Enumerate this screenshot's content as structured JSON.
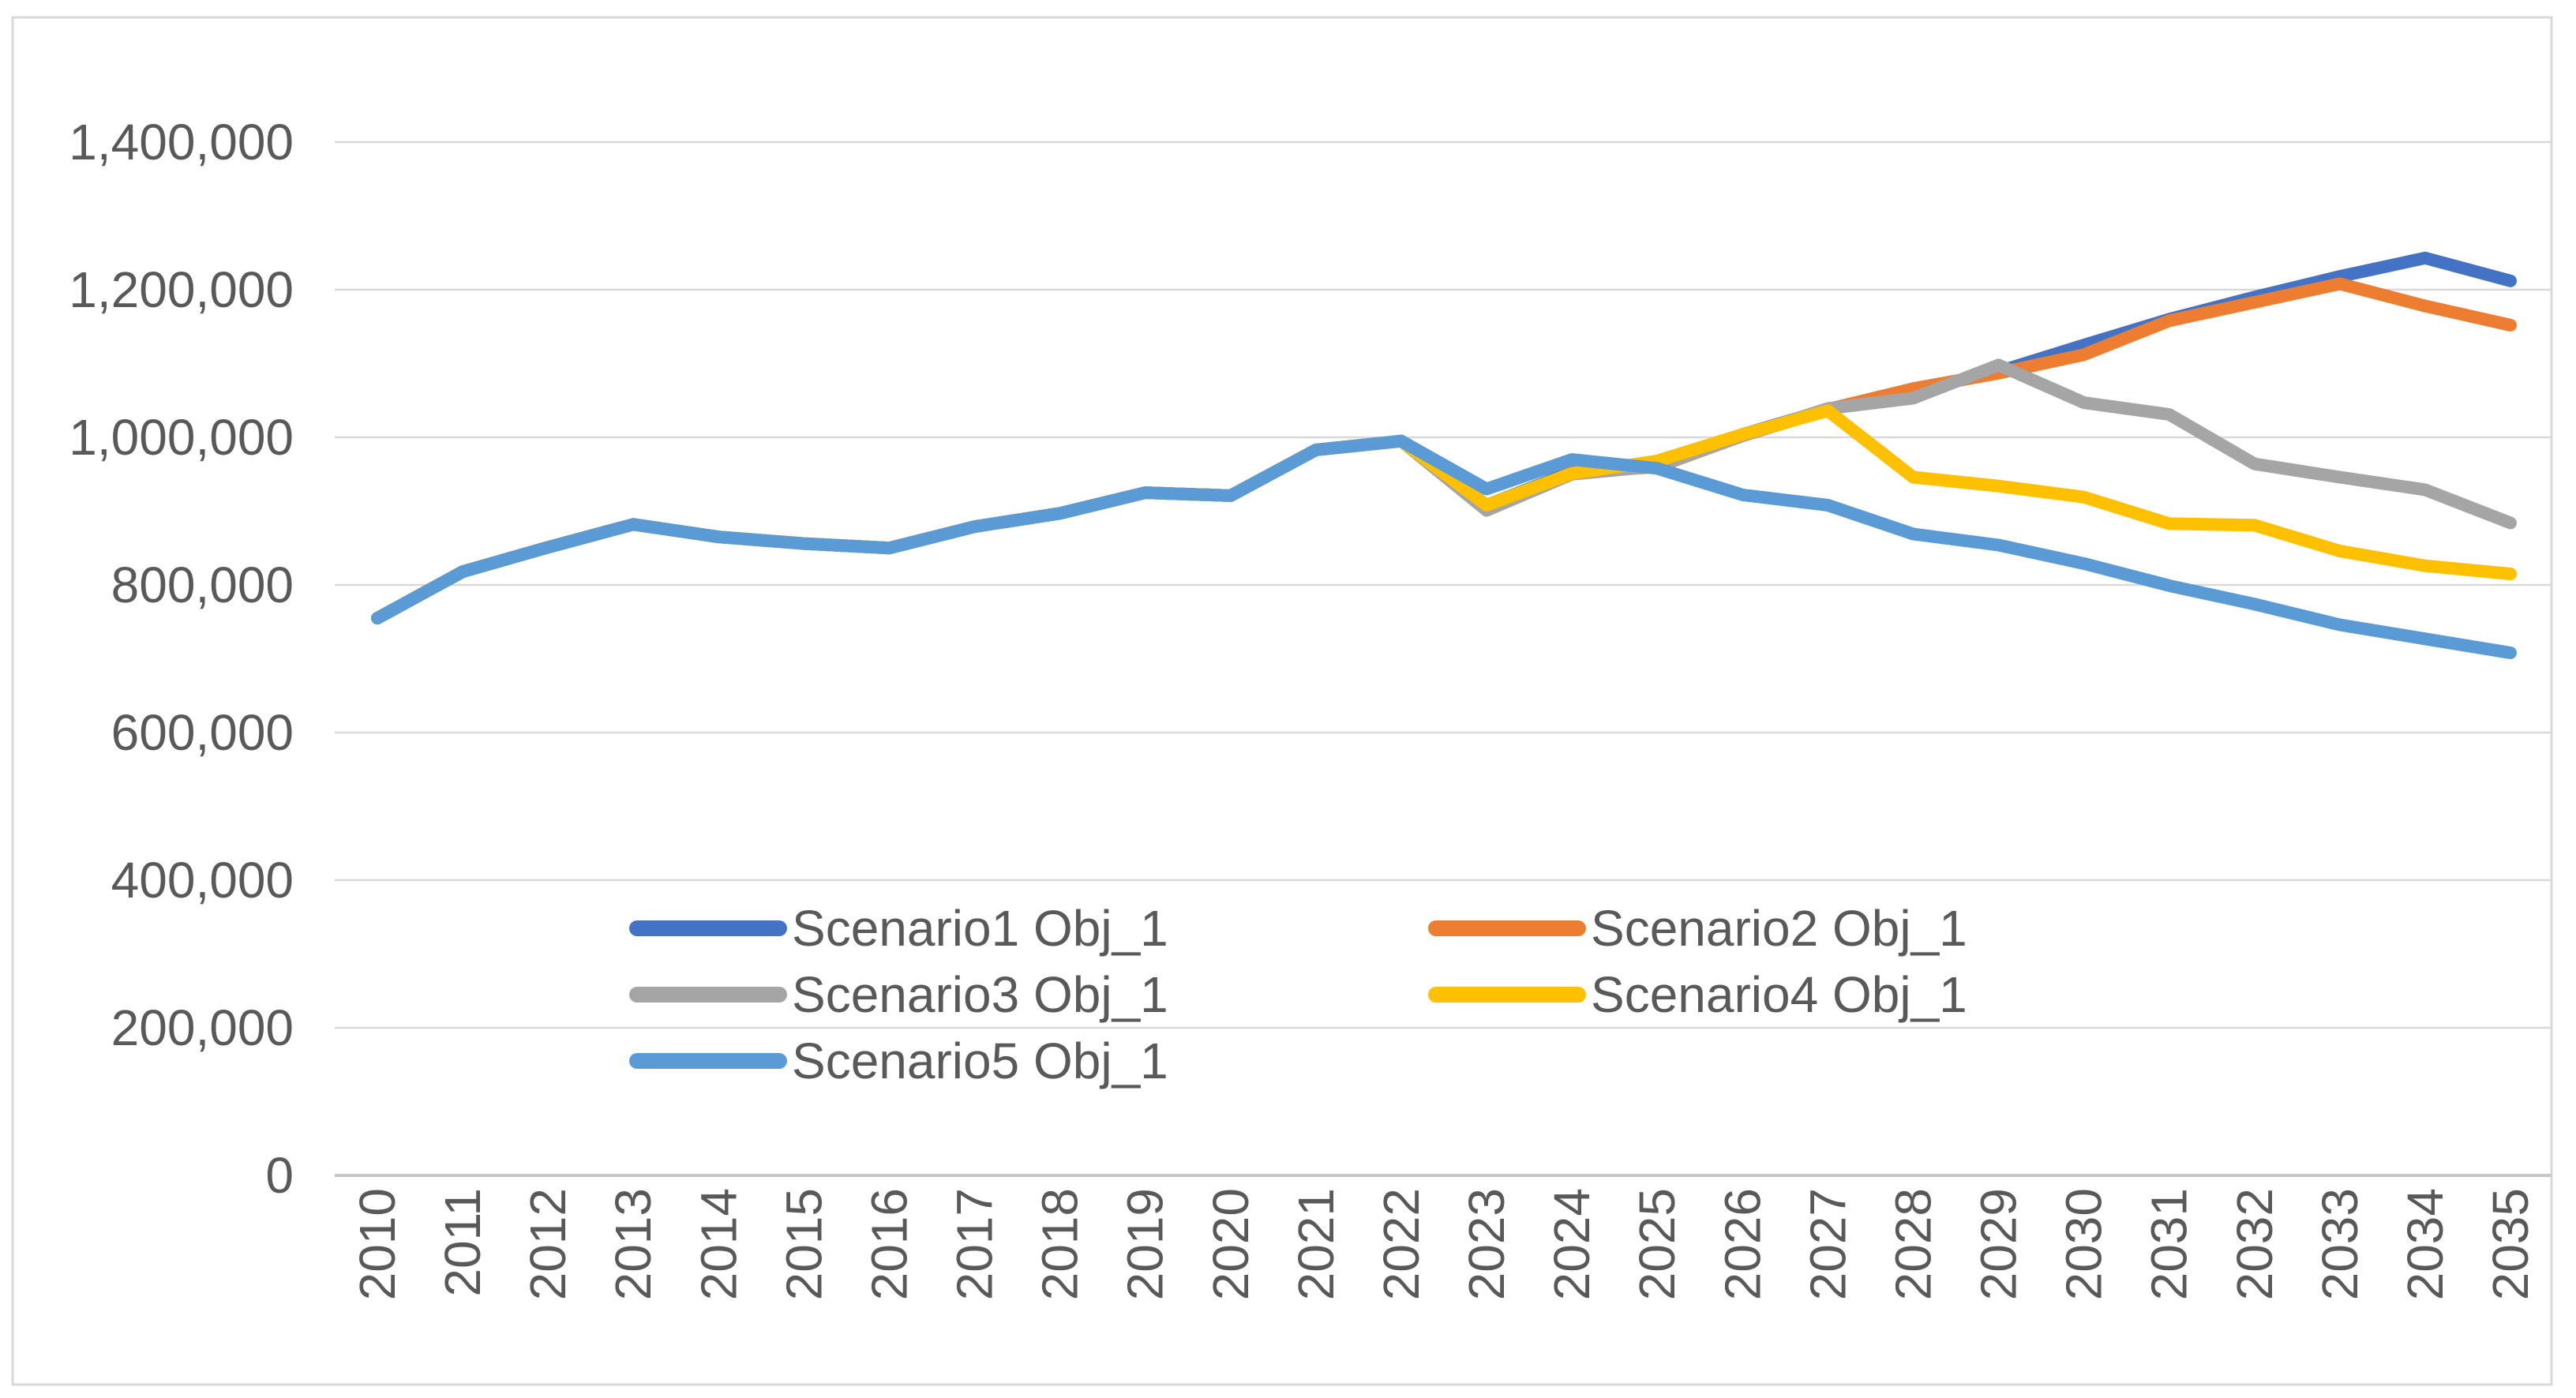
{
  "frame": {
    "background": "#FFFFFF",
    "border_color": "#D9D9D9",
    "grid_color": "#D9D9D9",
    "zero_axis_color": "#C6C6C6",
    "text_color": "#595959"
  },
  "chart_data": {
    "type": "line",
    "title": "",
    "xlabel": "",
    "ylabel": "",
    "grid": true,
    "legend_position": "inside-bottom-left, two columns",
    "x": [
      2010,
      2011,
      2012,
      2013,
      2014,
      2015,
      2016,
      2017,
      2018,
      2019,
      2020,
      2021,
      2022,
      2023,
      2024,
      2025,
      2026,
      2027,
      2028,
      2029,
      2030,
      2031,
      2032,
      2033,
      2034,
      2035
    ],
    "x_tick_labels": [
      "2010",
      "2011",
      "2012",
      "2013",
      "2014",
      "2015",
      "2016",
      "2017",
      "2018",
      "2019",
      "2020",
      "2021",
      "2022",
      "2023",
      "2024",
      "2025",
      "2026",
      "2027",
      "2028",
      "2029",
      "2030",
      "2031",
      "2032",
      "2033",
      "2034",
      "2035"
    ],
    "y_axis": {
      "min": 0,
      "max": 1400000,
      "step": 200000,
      "tick_labels": [
        "0",
        "200,000",
        "400,000",
        "600,000",
        "800,000",
        "1,000,000",
        "1,200,000",
        "1,400,000"
      ]
    },
    "series": [
      {
        "name": "Scenario1 Obj_1",
        "color": "#4472C4",
        "values": [
          755000,
          818000,
          851000,
          882000,
          865000,
          856000,
          850000,
          879000,
          897000,
          925000,
          921000,
          983000,
          995000,
          908000,
          953000,
          962000,
          1004000,
          1038000,
          1063000,
          1089000,
          1125000,
          1160000,
          1190000,
          1218000,
          1243000,
          1212000
        ]
      },
      {
        "name": "Scenario2 Obj_1",
        "color": "#ED7D31",
        "values": [
          755000,
          818000,
          851000,
          882000,
          865000,
          856000,
          850000,
          879000,
          897000,
          925000,
          921000,
          983000,
          995000,
          906000,
          952000,
          960000,
          1002000,
          1038000,
          1066000,
          1087000,
          1112000,
          1158000,
          1183000,
          1208000,
          1178000,
          1152000
        ]
      },
      {
        "name": "Scenario3 Obj_1",
        "color": "#A5A5A5",
        "values": [
          755000,
          818000,
          851000,
          882000,
          865000,
          856000,
          850000,
          879000,
          897000,
          925000,
          921000,
          983000,
          995000,
          901000,
          950000,
          961000,
          1002000,
          1039000,
          1053000,
          1098000,
          1047000,
          1031000,
          964000,
          946000,
          929000,
          884000
        ]
      },
      {
        "name": "Scenario4 Obj_1",
        "color": "#FFC000",
        "values": [
          755000,
          818000,
          851000,
          882000,
          865000,
          856000,
          850000,
          879000,
          897000,
          925000,
          921000,
          983000,
          995000,
          908000,
          951000,
          968000,
          1004000,
          1036000,
          946000,
          934000,
          919000,
          883000,
          881000,
          846000,
          826000,
          815000
        ]
      },
      {
        "name": "Scenario5 Obj_1",
        "color": "#5B9BD5",
        "values": [
          755000,
          818000,
          851000,
          882000,
          865000,
          856000,
          850000,
          879000,
          897000,
          925000,
          921000,
          983000,
          995000,
          930000,
          970000,
          958000,
          922000,
          908000,
          869000,
          854000,
          829000,
          799000,
          774000,
          746000,
          727000,
          708000
        ]
      }
    ],
    "legend_entries": [
      "Scenario1 Obj_1",
      "Scenario2 Obj_1",
      "Scenario3 Obj_1",
      "Scenario4 Obj_1",
      "Scenario5 Obj_1"
    ]
  }
}
